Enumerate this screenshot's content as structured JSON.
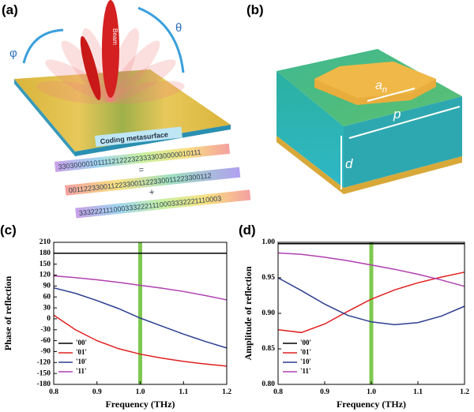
{
  "panel_a": {
    "label": "(a)",
    "phi": "φ",
    "theta": "θ",
    "beam": "Beam",
    "surface": "Coding metasurface",
    "codes": [
      "3303000010111121222323333030000010111",
      "0011223300112233001122330011223300112",
      "3332221110003332221110003332221110003"
    ],
    "equals": "=",
    "plus": "+"
  },
  "panel_b": {
    "label": "(b)",
    "a": "a",
    "a_sub": "n",
    "p": "p",
    "d": "d"
  },
  "chart_data": [
    {
      "type": "line",
      "panel_label": "(c)",
      "xlabel": "Frequency (THz)",
      "ylabel": "Phase of reflection",
      "x": [
        0.8,
        0.85,
        0.9,
        0.95,
        1.0,
        1.05,
        1.1,
        1.15,
        1.2
      ],
      "series": [
        {
          "name": "'00'",
          "color": "#000000",
          "values": [
            180,
            180,
            180,
            180,
            180,
            180,
            180,
            180,
            180
          ]
        },
        {
          "name": "'01'",
          "color": "#e02020",
          "values": [
            10,
            -30,
            -60,
            -82,
            -97,
            -108,
            -117,
            -124,
            -130
          ]
        },
        {
          "name": "'10'",
          "color": "#2b3f8f",
          "values": [
            85,
            70,
            50,
            28,
            2,
            -20,
            -42,
            -62,
            -80
          ]
        },
        {
          "name": "'11'",
          "color": "#b040b0",
          "values": [
            118,
            113,
            107,
            100,
            92,
            84,
            75,
            64,
            52
          ]
        }
      ],
      "xlim": [
        0.8,
        1.2
      ],
      "xticks": [
        0.8,
        0.9,
        {
          "value": 1,
          "label": "1.0"
        },
        1.1,
        1.2
      ],
      "ylim": [
        -180,
        210
      ],
      "yticks": [
        -180,
        -150,
        -120,
        -90,
        -60,
        -30,
        0,
        30,
        60,
        90,
        120,
        150,
        180,
        210
      ],
      "highlight_x": 1,
      "highlight_color": "#7ec850",
      "legend": "lower left"
    },
    {
      "type": "line",
      "panel_label": "(d)",
      "xlabel": "Frequency (THz)",
      "ylabel": "Amplitude of reflection",
      "x": [
        0.8,
        0.85,
        0.9,
        0.95,
        1.0,
        1.05,
        1.1,
        1.15,
        1.2
      ],
      "series": [
        {
          "name": "'00'",
          "color": "#000000",
          "values": [
            0.998,
            0.998,
            0.998,
            0.998,
            0.998,
            0.998,
            0.998,
            0.998,
            0.998
          ]
        },
        {
          "name": "'01'",
          "color": "#e02020",
          "values": [
            0.877,
            0.873,
            0.885,
            0.903,
            0.92,
            0.933,
            0.943,
            0.951,
            0.958
          ]
        },
        {
          "name": "'10'",
          "color": "#2b3f8f",
          "values": [
            0.95,
            0.932,
            0.913,
            0.897,
            0.888,
            0.884,
            0.887,
            0.896,
            0.91
          ]
        },
        {
          "name": "'11'",
          "color": "#b040b0",
          "values": [
            0.985,
            0.983,
            0.979,
            0.974,
            0.968,
            0.962,
            0.955,
            0.947,
            0.938
          ]
        }
      ],
      "xlim": [
        0.8,
        1.2
      ],
      "xticks": [
        0.8,
        0.9,
        {
          "value": 1,
          "label": "1.0"
        },
        1.1,
        1.2
      ],
      "ylim": [
        0.8,
        1.0
      ],
      "yticks": [
        {
          "value": 0.8,
          "label": "0.80"
        },
        {
          "value": 0.85,
          "label": "0.85"
        },
        {
          "value": 0.9,
          "label": "0.90"
        },
        {
          "value": 0.95,
          "label": "0.95"
        },
        {
          "value": 1,
          "label": "1.00"
        }
      ],
      "highlight_x": 1,
      "highlight_color": "#7ec850",
      "legend": "lower left"
    }
  ]
}
